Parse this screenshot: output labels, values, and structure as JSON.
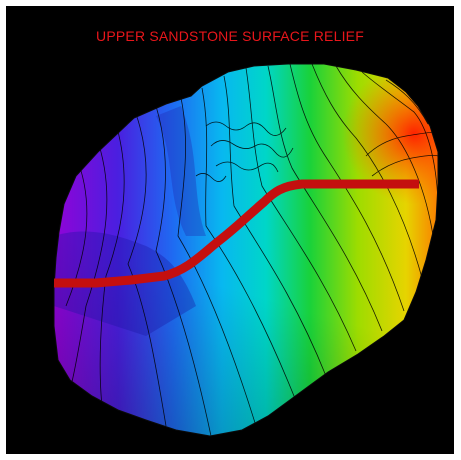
{
  "figure": {
    "title": "UPPER SANDSTONE SURFACE RELIEF",
    "title_color": "#e8161b",
    "background": "#000000",
    "path_color": "#c40f0f",
    "contour_color": "#000000",
    "colormap": [
      "#9a00d6",
      "#2d28e0",
      "#1aa0ff",
      "#00d6c8",
      "#19d23a",
      "#9edc00",
      "#e6d400",
      "#ff6a00",
      "#ff1a00"
    ]
  }
}
